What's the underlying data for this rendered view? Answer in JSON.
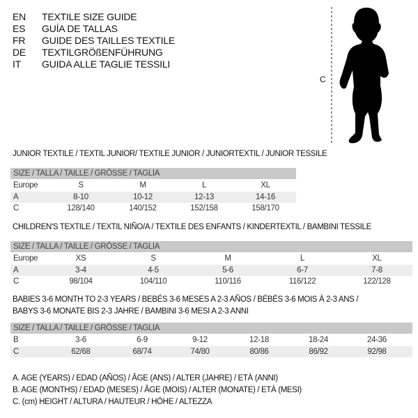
{
  "languages": [
    {
      "code": "EN",
      "title": "TEXTILE SIZE GUIDE"
    },
    {
      "code": "ES",
      "title": "GUÍA DE TALLAS"
    },
    {
      "code": "FR",
      "title": "GUIDE DES TAILLES TEXTILE"
    },
    {
      "code": "DE",
      "title": "TEXTILGRÖßENFÜHRUNG"
    },
    {
      "code": "IT",
      "title": "GUIDA ALLE TAGLIE TESSILI"
    }
  ],
  "figure": {
    "measure_label": "C",
    "silhouette": "child-silhouette"
  },
  "tables": [
    {
      "heading": [
        "JUNIOR TEXTILE / TEXTIL JUNIOR/ TEXTILE JUNIOR / JUNIORTEXTIL / JUNIOR TESSILE"
      ],
      "header": "SIZE / TALLA / TAILLE / GRÖSSE / TAGLIA",
      "rows": [
        {
          "label": "Europe",
          "values": [
            "S",
            "M",
            "L",
            "XL"
          ]
        },
        {
          "label": "A",
          "values": [
            "8-10",
            "10-12",
            "12-13",
            "14-16"
          ]
        },
        {
          "label": "C",
          "values": [
            "128/140",
            "140/152",
            "152/158",
            "158/170"
          ]
        }
      ]
    },
    {
      "heading": [
        "CHILDREN'S TEXTILE / TEXTIL NIÑO/A / TEXTILE DES ENFANTS / KINDERTEXTIL / BAMBINI TESSILE"
      ],
      "header": "SIZE / TALLA / TAILLE / GRÖSSE / TAGLIA",
      "rows": [
        {
          "label": "Europe",
          "values": [
            "XS",
            "S",
            "M",
            "L",
            "XL"
          ]
        },
        {
          "label": "A",
          "values": [
            "3-4",
            "4-5",
            "5-6",
            "6-7",
            "7-8"
          ]
        },
        {
          "label": "C",
          "values": [
            "98/104",
            "104/110",
            "110/116",
            "116/122",
            "122/128"
          ]
        }
      ]
    },
    {
      "heading": [
        "BABIES 3-6 MONTH TO 2-3 YEARS / BEBÉS 3-6 MESES A 2-3 AÑOS / BÉBÉS 3-6 MOIS À 2-3 ANS /",
        "BABYS 3-6 MONATE BIS 2-3 JAHRE / BAMBINI 3-6 MESI A 2-3 ANNI"
      ],
      "header": "SIZE / TALLA / TAILLE / GRÖSSE / TAGLIA",
      "rows": [
        {
          "label": "B",
          "values": [
            "3-6",
            "6-9",
            "9-12",
            "12-18",
            "18-24",
            "24-36"
          ]
        },
        {
          "label": "C",
          "values": [
            "62/68",
            "68/74",
            "74/80",
            "80/86",
            "86/92",
            "92/98"
          ]
        }
      ]
    }
  ],
  "legend": [
    "A. AGE (YEARS) / EDAD (AÑOS) / ÂGE (ANS) / ALTER (JAHRE) / ETÀ (ANNI)",
    "B. AGE (MONTHS) / EDAD (MESES) / ÂGE (MOIS) / ALTER (MONATE) / ETÀ (MESI)",
    "C. (cm) HEIGHT / ALTURA / HAUTEUR / HÖHE / ALTEZZA"
  ]
}
